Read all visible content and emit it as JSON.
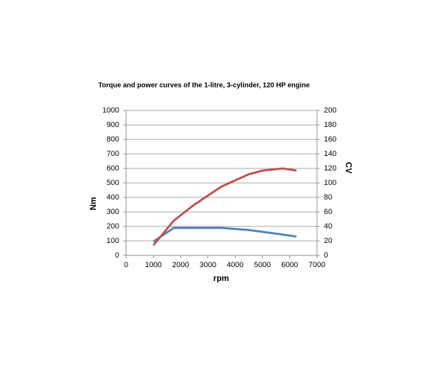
{
  "chart_data": {
    "type": "line",
    "title": "Torque and power curves of the 1-litre, 3-cylinder, 120 HP engine",
    "x_label": "rpm",
    "y_label": "Nm",
    "y2_label": "CV",
    "xlim": [
      0,
      7000
    ],
    "xticks": [
      0,
      1000,
      2000,
      3000,
      4000,
      5000,
      6000,
      7000
    ],
    "ylim": [
      0,
      1000
    ],
    "yticks": [
      0,
      100,
      200,
      300,
      400,
      500,
      600,
      700,
      800,
      900,
      1000
    ],
    "y2lim": [
      0,
      200
    ],
    "y2ticks": [
      0,
      20,
      40,
      60,
      80,
      100,
      120,
      140,
      160,
      180,
      200
    ],
    "grid": true,
    "series": [
      {
        "color": "#4f81bd",
        "x": [
          1000,
          1750,
          3500,
          4500,
          5500,
          6250
        ],
        "values": [
          95,
          190,
          190,
          175,
          150,
          130
        ]
      },
      {
        "color": "#c0504d",
        "axis": "y2",
        "x": [
          1000,
          1750,
          2500,
          3500,
          4500,
          5000,
          5750,
          6250
        ],
        "values": [
          14,
          48,
          70,
          95,
          112,
          117,
          120,
          117
        ]
      }
    ]
  }
}
